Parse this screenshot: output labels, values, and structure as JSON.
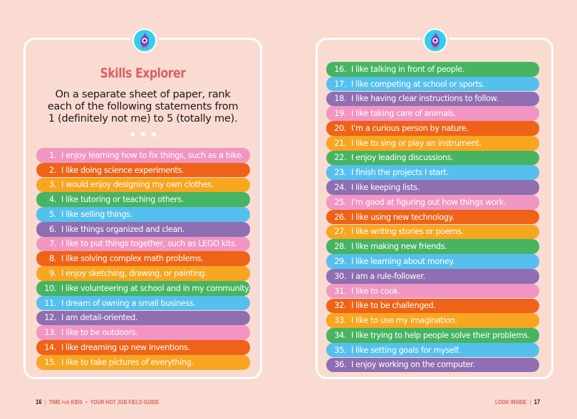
{
  "left_page": {
    "title": "Skills Explorer",
    "instructions_lines": [
      "On a separate sheet of paper, rank",
      "each of the following statements from",
      "1 (definitely not me) to 5 (totally me)."
    ],
    "mascot_icon": "purple-flame-monster",
    "statements": [
      {
        "num": "1.",
        "text": "I enjoy learning how to fix things, such as a bike.",
        "color": "#f195c3"
      },
      {
        "num": "2.",
        "text": "I like doing science experiments.",
        "color": "#ee6318"
      },
      {
        "num": "3.",
        "text": "I would enjoy designing my own clothes.",
        "color": "#f8a520"
      },
      {
        "num": "4.",
        "text": "I like tutoring or teaching others.",
        "color": "#46b461"
      },
      {
        "num": "5.",
        "text": "I like selling things.",
        "color": "#55c0ee"
      },
      {
        "num": "6.",
        "text": "I like things organized and clean.",
        "color": "#8f6eb1"
      },
      {
        "num": "7.",
        "text": "I like to put things together, such as LEGO kits.",
        "color": "#f195c3"
      },
      {
        "num": "8.",
        "text": "I like solving complex math problems.",
        "color": "#ee6318"
      },
      {
        "num": "9.",
        "text": "I enjoy sketching, drawing, or painting.",
        "color": "#f8a520"
      },
      {
        "num": "10.",
        "text": "I like volunteering at school and in my community.",
        "color": "#46b461"
      },
      {
        "num": "11.",
        "text": "I dream of owning a small business.",
        "color": "#55c0ee"
      },
      {
        "num": "12.",
        "text": "I am detail-oriented.",
        "color": "#8f6eb1"
      },
      {
        "num": "13.",
        "text": "I like to be outdoors.",
        "color": "#f195c3"
      },
      {
        "num": "14.",
        "text": "I like dreaming up new inventions.",
        "color": "#ee6318"
      },
      {
        "num": "15.",
        "text": "I like to take pictures of everything.",
        "color": "#f8a520"
      }
    ],
    "footer": {
      "page_number": "16",
      "brand_time": "TIME",
      "brand_for": "FOR",
      "brand_kids": "KIDS",
      "bullet": "•",
      "section": "YOUR HOT JOB FIELD GUIDE"
    }
  },
  "right_page": {
    "mascot_icon": "purple-flame-monster",
    "statements": [
      {
        "num": "16.",
        "text": "I like talking in front of people.",
        "color": "#46b461"
      },
      {
        "num": "17.",
        "text": "I like competing at school or sports.",
        "color": "#55c0ee"
      },
      {
        "num": "18.",
        "text": "I like having clear instructions to follow.",
        "color": "#8f6eb1"
      },
      {
        "num": "19.",
        "text": "I like taking care of animals.",
        "color": "#f195c3"
      },
      {
        "num": "20.",
        "text": "I’m a curious person by nature.",
        "color": "#ee6318"
      },
      {
        "num": "21.",
        "text": "I like to sing or play an instrument.",
        "color": "#f8a520"
      },
      {
        "num": "22.",
        "text": "I enjoy leading discussions.",
        "color": "#46b461"
      },
      {
        "num": "23.",
        "text": "I finish the projects I start.",
        "color": "#55c0ee"
      },
      {
        "num": "24.",
        "text": "I like keeping lists.",
        "color": "#8f6eb1"
      },
      {
        "num": "25.",
        "text": "I’m good at figuring out how things work.",
        "color": "#f195c3"
      },
      {
        "num": "26.",
        "text": "I like using new technology.",
        "color": "#ee6318"
      },
      {
        "num": "27.",
        "text": "I like writing stories or poems.",
        "color": "#f8a520"
      },
      {
        "num": "28.",
        "text": "I like making new friends.",
        "color": "#46b461"
      },
      {
        "num": "29.",
        "text": "I like learning about money.",
        "color": "#55c0ee"
      },
      {
        "num": "30.",
        "text": "I am a rule-follower.",
        "color": "#8f6eb1"
      },
      {
        "num": "31.",
        "text": "I like to cook.",
        "color": "#f195c3"
      },
      {
        "num": "32.",
        "text": "I like to be challenged.",
        "color": "#ee6318"
      },
      {
        "num": "33.",
        "text": "I like to use my imagination.",
        "color": "#f8a520"
      },
      {
        "num": "34.",
        "text": "I like trying to help people solve their problems.",
        "color": "#46b461"
      },
      {
        "num": "35.",
        "text": "I like setting goals for myself.",
        "color": "#55c0ee"
      },
      {
        "num": "36.",
        "text": "I enjoy working on the computer.",
        "color": "#8f6eb1"
      }
    ],
    "footer": {
      "section": "LOOK INSIDE",
      "page_number": "17"
    }
  },
  "colors": {
    "background": "#fadbd2",
    "panel_border": "#ffffff",
    "title": "#d9625f",
    "mascot_circle": "#2fd0ec"
  }
}
